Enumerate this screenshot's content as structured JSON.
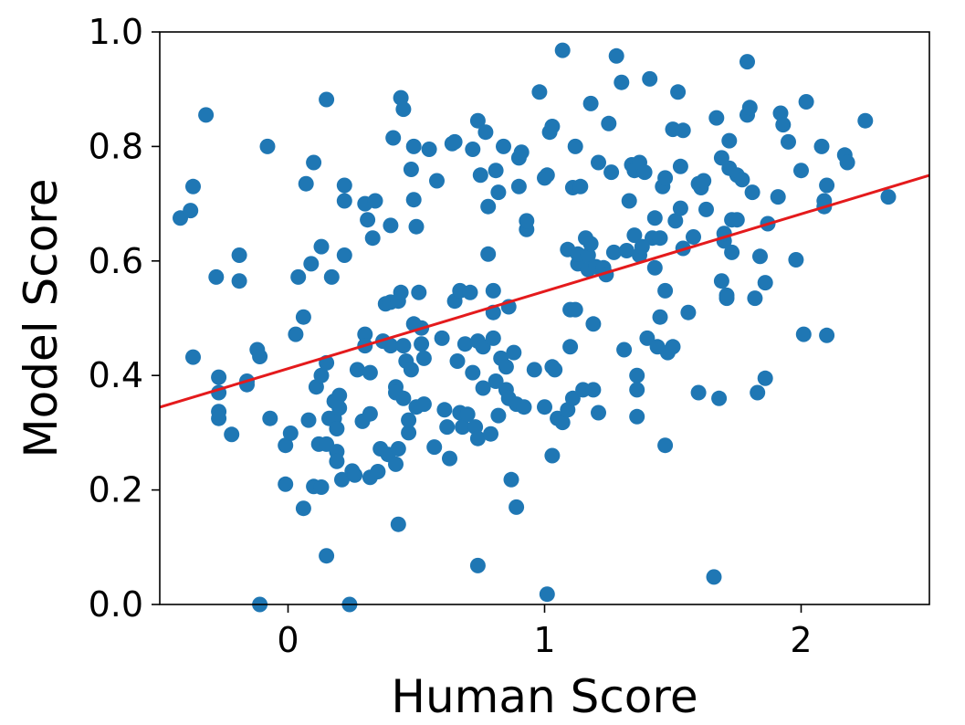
{
  "chart_data": {
    "type": "scatter",
    "title": "",
    "xlabel": "Human Score",
    "ylabel": "Model Score",
    "xlim": [
      -0.5,
      2.5
    ],
    "ylim": [
      0.0,
      1.0
    ],
    "x_ticks": [
      0,
      1,
      2
    ],
    "y_ticks": [
      0.0,
      0.2,
      0.4,
      0.6,
      0.8,
      1.0
    ],
    "x_tick_labels": [
      "0",
      "1",
      "2"
    ],
    "y_tick_labels": [
      "0.0",
      "0.2",
      "0.4",
      "0.6",
      "0.8",
      "1.0"
    ],
    "grid": false,
    "legend": "none",
    "point_color": "#1f77b4",
    "fit_line_color": "#e41a1c",
    "fit_line": {
      "slope": 0.135,
      "intercept": 0.412
    },
    "points": [
      [
        -0.42,
        0.675
      ],
      [
        -0.38,
        0.688
      ],
      [
        -0.37,
        0.73
      ],
      [
        -0.32,
        0.855
      ],
      [
        -0.28,
        0.572
      ],
      [
        -0.27,
        0.397
      ],
      [
        -0.27,
        0.37
      ],
      [
        -0.27,
        0.337
      ],
      [
        -0.27,
        0.325
      ],
      [
        -0.22,
        0.297
      ],
      [
        -0.19,
        0.61
      ],
      [
        -0.19,
        0.565
      ],
      [
        -0.16,
        0.39
      ],
      [
        -0.16,
        0.384
      ],
      [
        -0.12,
        0.445
      ],
      [
        -0.11,
        0.433
      ],
      [
        -0.11,
        0.0
      ],
      [
        -0.08,
        0.8
      ],
      [
        -0.07,
        0.325
      ],
      [
        -0.37,
        0.432
      ],
      [
        -0.01,
        0.278
      ],
      [
        -0.01,
        0.21
      ],
      [
        0.01,
        0.299
      ],
      [
        0.03,
        0.472
      ],
      [
        0.04,
        0.572
      ],
      [
        0.06,
        0.502
      ],
      [
        0.06,
        0.168
      ],
      [
        0.07,
        0.735
      ],
      [
        0.08,
        0.322
      ],
      [
        0.09,
        0.595
      ],
      [
        0.1,
        0.206
      ],
      [
        0.1,
        0.772
      ],
      [
        0.11,
        0.38
      ],
      [
        0.12,
        0.28
      ],
      [
        0.13,
        0.625
      ],
      [
        0.13,
        0.4
      ],
      [
        0.13,
        0.205
      ],
      [
        0.15,
        0.882
      ],
      [
        0.15,
        0.422
      ],
      [
        0.15,
        0.28
      ],
      [
        0.15,
        0.085
      ],
      [
        0.16,
        0.325
      ],
      [
        0.17,
        0.572
      ],
      [
        0.18,
        0.355
      ],
      [
        0.18,
        0.325
      ],
      [
        0.19,
        0.307
      ],
      [
        0.19,
        0.267
      ],
      [
        0.19,
        0.25
      ],
      [
        0.2,
        0.365
      ],
      [
        0.2,
        0.343
      ],
      [
        0.21,
        0.218
      ],
      [
        0.22,
        0.61
      ],
      [
        0.22,
        0.705
      ],
      [
        0.22,
        0.732
      ],
      [
        0.24,
        0.0
      ],
      [
        0.25,
        0.233
      ],
      [
        0.26,
        0.226
      ],
      [
        0.27,
        0.41
      ],
      [
        0.29,
        0.32
      ],
      [
        0.3,
        0.472
      ],
      [
        0.3,
        0.452
      ],
      [
        0.3,
        0.7
      ],
      [
        0.31,
        0.672
      ],
      [
        0.32,
        0.405
      ],
      [
        0.32,
        0.333
      ],
      [
        0.32,
        0.222
      ],
      [
        0.33,
        0.64
      ],
      [
        0.34,
        0.705
      ],
      [
        0.35,
        0.232
      ],
      [
        0.36,
        0.272
      ],
      [
        0.37,
        0.46
      ],
      [
        0.38,
        0.525
      ],
      [
        0.39,
        0.262
      ],
      [
        0.4,
        0.528
      ],
      [
        0.4,
        0.662
      ],
      [
        0.4,
        0.452
      ],
      [
        0.41,
        0.815
      ],
      [
        0.42,
        0.38
      ],
      [
        0.42,
        0.37
      ],
      [
        0.42,
        0.245
      ],
      [
        0.43,
        0.14
      ],
      [
        0.43,
        0.272
      ],
      [
        0.43,
        0.53
      ],
      [
        0.44,
        0.545
      ],
      [
        0.44,
        0.885
      ],
      [
        0.45,
        0.865
      ],
      [
        0.45,
        0.36
      ],
      [
        0.45,
        0.452
      ],
      [
        0.46,
        0.425
      ],
      [
        0.47,
        0.3
      ],
      [
        0.47,
        0.322
      ],
      [
        0.48,
        0.41
      ],
      [
        0.48,
        0.76
      ],
      [
        0.49,
        0.8
      ],
      [
        0.49,
        0.49
      ],
      [
        0.49,
        0.707
      ],
      [
        0.5,
        0.66
      ],
      [
        0.5,
        0.345
      ],
      [
        0.51,
        0.545
      ],
      [
        0.52,
        0.483
      ],
      [
        0.52,
        0.455
      ],
      [
        0.53,
        0.43
      ],
      [
        0.53,
        0.35
      ],
      [
        0.55,
        0.795
      ],
      [
        0.57,
        0.275
      ],
      [
        0.58,
        0.74
      ],
      [
        0.6,
        0.465
      ],
      [
        0.61,
        0.34
      ],
      [
        0.62,
        0.31
      ],
      [
        0.63,
        0.255
      ],
      [
        0.64,
        0.805
      ],
      [
        0.65,
        0.808
      ],
      [
        0.65,
        0.53
      ],
      [
        0.66,
        0.425
      ],
      [
        0.67,
        0.548
      ],
      [
        0.67,
        0.335
      ],
      [
        0.68,
        0.31
      ],
      [
        0.69,
        0.455
      ],
      [
        0.7,
        0.332
      ],
      [
        0.71,
        0.545
      ],
      [
        0.72,
        0.405
      ],
      [
        0.72,
        0.795
      ],
      [
        0.73,
        0.31
      ],
      [
        0.74,
        0.845
      ],
      [
        0.74,
        0.068
      ],
      [
        0.74,
        0.29
      ],
      [
        0.74,
        0.46
      ],
      [
        0.75,
        0.75
      ],
      [
        0.76,
        0.45
      ],
      [
        0.76,
        0.378
      ],
      [
        0.77,
        0.825
      ],
      [
        0.78,
        0.695
      ],
      [
        0.78,
        0.612
      ],
      [
        0.79,
        0.298
      ],
      [
        0.8,
        0.548
      ],
      [
        0.8,
        0.465
      ],
      [
        0.8,
        0.51
      ],
      [
        0.81,
        0.758
      ],
      [
        0.81,
        0.39
      ],
      [
        0.82,
        0.72
      ],
      [
        0.82,
        0.33
      ],
      [
        0.83,
        0.43
      ],
      [
        0.84,
        0.8
      ],
      [
        0.85,
        0.415
      ],
      [
        0.85,
        0.375
      ],
      [
        0.86,
        0.52
      ],
      [
        0.86,
        0.36
      ],
      [
        0.87,
        0.218
      ],
      [
        0.88,
        0.44
      ],
      [
        0.89,
        0.17
      ],
      [
        0.89,
        0.35
      ],
      [
        0.9,
        0.73
      ],
      [
        0.9,
        0.78
      ],
      [
        0.91,
        0.79
      ],
      [
        0.92,
        0.345
      ],
      [
        0.93,
        0.655
      ],
      [
        0.93,
        0.67
      ],
      [
        0.96,
        0.41
      ],
      [
        0.98,
        0.895
      ],
      [
        1.0,
        0.745
      ],
      [
        1.0,
        0.345
      ],
      [
        1.01,
        0.018
      ],
      [
        1.01,
        0.75
      ],
      [
        1.02,
        0.825
      ],
      [
        1.03,
        0.835
      ],
      [
        1.03,
        0.26
      ],
      [
        1.03,
        0.415
      ],
      [
        1.04,
        0.41
      ],
      [
        1.05,
        0.325
      ],
      [
        1.07,
        0.968
      ],
      [
        1.07,
        0.318
      ],
      [
        1.09,
        0.62
      ],
      [
        1.09,
        0.34
      ],
      [
        1.1,
        0.515
      ],
      [
        1.1,
        0.45
      ],
      [
        1.11,
        0.728
      ],
      [
        1.11,
        0.36
      ],
      [
        1.12,
        0.8
      ],
      [
        1.12,
        0.515
      ],
      [
        1.13,
        0.595
      ],
      [
        1.13,
        0.612
      ],
      [
        1.14,
        0.73
      ],
      [
        1.15,
        0.375
      ],
      [
        1.16,
        0.64
      ],
      [
        1.17,
        0.61
      ],
      [
        1.17,
        0.585
      ],
      [
        1.18,
        0.875
      ],
      [
        1.18,
        0.63
      ],
      [
        1.19,
        0.49
      ],
      [
        1.19,
        0.375
      ],
      [
        1.2,
        0.59
      ],
      [
        1.21,
        0.772
      ],
      [
        1.21,
        0.335
      ],
      [
        1.23,
        0.588
      ],
      [
        1.24,
        0.576
      ],
      [
        1.25,
        0.84
      ],
      [
        1.26,
        0.755
      ],
      [
        1.27,
        0.615
      ],
      [
        1.28,
        0.958
      ],
      [
        1.3,
        0.912
      ],
      [
        1.31,
        0.445
      ],
      [
        1.32,
        0.618
      ],
      [
        1.33,
        0.705
      ],
      [
        1.34,
        0.768
      ],
      [
        1.35,
        0.758
      ],
      [
        1.35,
        0.645
      ],
      [
        1.36,
        0.4
      ],
      [
        1.36,
        0.375
      ],
      [
        1.36,
        0.328
      ],
      [
        1.37,
        0.772
      ],
      [
        1.37,
        0.61
      ],
      [
        1.38,
        0.625
      ],
      [
        1.39,
        0.755
      ],
      [
        1.4,
        0.465
      ],
      [
        1.41,
        0.918
      ],
      [
        1.42,
        0.64
      ],
      [
        1.43,
        0.588
      ],
      [
        1.43,
        0.675
      ],
      [
        1.44,
        0.45
      ],
      [
        1.45,
        0.502
      ],
      [
        1.45,
        0.64
      ],
      [
        1.46,
        0.73
      ],
      [
        1.47,
        0.745
      ],
      [
        1.47,
        0.548
      ],
      [
        1.47,
        0.278
      ],
      [
        1.48,
        0.44
      ],
      [
        1.5,
        0.83
      ],
      [
        1.5,
        0.45
      ],
      [
        1.51,
        0.67
      ],
      [
        1.52,
        0.895
      ],
      [
        1.53,
        0.765
      ],
      [
        1.53,
        0.692
      ],
      [
        1.54,
        0.622
      ],
      [
        1.54,
        0.828
      ],
      [
        1.56,
        0.51
      ],
      [
        1.58,
        0.642
      ],
      [
        1.6,
        0.735
      ],
      [
        1.6,
        0.37
      ],
      [
        1.61,
        0.728
      ],
      [
        1.62,
        0.74
      ],
      [
        1.63,
        0.69
      ],
      [
        1.66,
        0.048
      ],
      [
        1.67,
        0.85
      ],
      [
        1.68,
        0.36
      ],
      [
        1.69,
        0.565
      ],
      [
        1.69,
        0.78
      ],
      [
        1.7,
        0.635
      ],
      [
        1.7,
        0.648
      ],
      [
        1.71,
        0.54
      ],
      [
        1.71,
        0.535
      ],
      [
        1.72,
        0.81
      ],
      [
        1.72,
        0.762
      ],
      [
        1.73,
        0.615
      ],
      [
        1.73,
        0.672
      ],
      [
        1.75,
        0.672
      ],
      [
        1.75,
        0.75
      ],
      [
        1.77,
        0.742
      ],
      [
        1.79,
        0.948
      ],
      [
        1.79,
        0.855
      ],
      [
        1.8,
        0.868
      ],
      [
        1.81,
        0.72
      ],
      [
        1.82,
        0.535
      ],
      [
        1.83,
        0.37
      ],
      [
        1.84,
        0.608
      ],
      [
        1.86,
        0.395
      ],
      [
        1.86,
        0.562
      ],
      [
        1.87,
        0.665
      ],
      [
        1.91,
        0.712
      ],
      [
        1.92,
        0.858
      ],
      [
        1.93,
        0.838
      ],
      [
        1.95,
        0.808
      ],
      [
        1.98,
        0.602
      ],
      [
        2.0,
        0.758
      ],
      [
        2.01,
        0.472
      ],
      [
        2.02,
        0.878
      ],
      [
        2.08,
        0.8
      ],
      [
        2.09,
        0.705
      ],
      [
        2.09,
        0.695
      ],
      [
        2.1,
        0.47
      ],
      [
        2.1,
        0.732
      ],
      [
        2.17,
        0.785
      ],
      [
        2.18,
        0.772
      ],
      [
        2.25,
        0.845
      ],
      [
        2.34,
        0.712
      ]
    ]
  }
}
